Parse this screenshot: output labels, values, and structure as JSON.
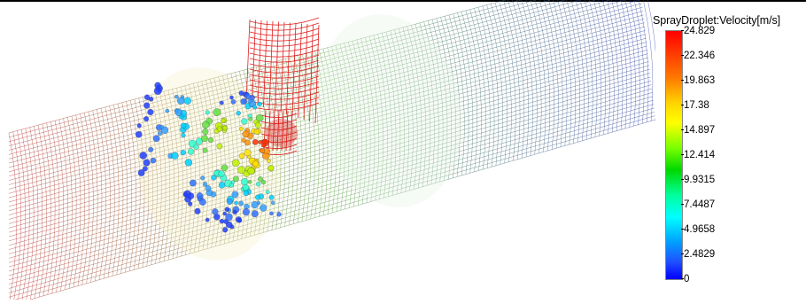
{
  "legend": {
    "title": "SprayDroplet:Velocity[m/s]",
    "ticks": [
      "24.829",
      "22.346",
      "19.863",
      "17.38",
      "14.897",
      "12.414",
      "9.9315",
      "7.4487",
      "4.9658",
      "2.4829",
      "0"
    ],
    "colors": {
      "max": "#ff0000",
      "high": "#ff8000",
      "mid_high": "#ffff00",
      "mid": "#00d800",
      "mid_low": "#00ffff",
      "low": "#0000ff"
    }
  },
  "scene": {
    "pipe_wire_colors": [
      "#b83030",
      "#5aa040",
      "#3040a8"
    ],
    "nozzle_color": "#e02020"
  }
}
